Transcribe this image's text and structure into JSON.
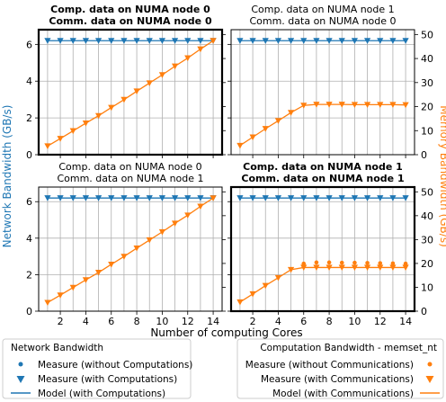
{
  "chart_data": {
    "type": "line",
    "x": [
      1,
      2,
      3,
      4,
      5,
      6,
      7,
      8,
      9,
      10,
      11,
      12,
      13,
      14
    ],
    "xlabel": "Number of computing Cores",
    "xticks": [
      "2",
      "4",
      "6",
      "8",
      "10",
      "12",
      "14"
    ],
    "xlim": [
      0.3,
      14.7
    ],
    "ylabel_left": "Network Bandwidth (GB/s)",
    "ylabel_right": "Memory Bandwidth (GB/s)",
    "ylim_left": [
      0,
      6.8
    ],
    "ylim_right": [
      0,
      52
    ],
    "yticks_left": [
      "0",
      "2",
      "4",
      "6"
    ],
    "yticks_right": [
      "0",
      "10",
      "20",
      "30",
      "40",
      "50"
    ],
    "grid": true,
    "colors": {
      "network": "#1f77b4",
      "memory": "#ff7f0e"
    },
    "panels": [
      {
        "title_line1": "Comp. data on NUMA node 0",
        "title_line2": "Comm. data on NUMA node 0",
        "title_bold": true,
        "highlight": true,
        "network_with_computations": [
          6.2,
          6.2,
          6.2,
          6.2,
          6.2,
          6.2,
          6.2,
          6.2,
          6.2,
          6.2,
          6.2,
          6.2,
          6.2,
          6.2
        ],
        "memory_with_communications": [
          3.6,
          6.7,
          9.9,
          13.1,
          16.2,
          19.6,
          22.9,
          26.4,
          29.8,
          33.2,
          36.8,
          40.2,
          43.9,
          47.4
        ],
        "memory_without_communications": [],
        "memory_model": [
          3.6,
          6.7,
          9.9,
          13.1,
          16.2,
          19.6,
          22.9,
          26.4,
          29.8,
          33.2,
          36.8,
          40.2,
          43.9,
          47.4
        ]
      },
      {
        "title_line1": "Comp. data on NUMA node 1",
        "title_line2": "Comm. data on NUMA node 0",
        "title_bold": false,
        "highlight": false,
        "network_with_computations": [
          6.2,
          6.2,
          6.2,
          6.2,
          6.2,
          6.2,
          6.2,
          6.2,
          6.2,
          6.2,
          6.2,
          6.2,
          6.2,
          6.2
        ],
        "memory_with_communications": [
          3.8,
          7.3,
          10.8,
          14.1,
          17.5,
          20.5,
          20.9,
          20.9,
          20.9,
          20.8,
          20.8,
          20.8,
          20.8,
          20.7
        ],
        "memory_without_communications": [],
        "memory_model": [
          3.8,
          7.3,
          10.8,
          14.1,
          17.5,
          20.5,
          20.9,
          20.9,
          20.9,
          20.8,
          20.8,
          20.8,
          20.8,
          20.7
        ]
      },
      {
        "title_line1": "Comp. data on NUMA node 0",
        "title_line2": "Comm. data on NUMA node 1",
        "title_bold": false,
        "highlight": false,
        "network_with_computations": [
          6.2,
          6.2,
          6.2,
          6.2,
          6.2,
          6.2,
          6.2,
          6.2,
          6.2,
          6.2,
          6.2,
          6.2,
          6.2,
          6.2
        ],
        "memory_with_communications": [
          3.6,
          6.7,
          9.9,
          13.1,
          16.2,
          19.6,
          22.9,
          26.4,
          29.8,
          33.2,
          36.8,
          40.2,
          43.9,
          47.4
        ],
        "memory_without_communications": [],
        "memory_model": [
          3.6,
          6.7,
          9.9,
          13.1,
          16.2,
          19.6,
          22.9,
          26.4,
          29.8,
          33.2,
          36.8,
          40.2,
          43.9,
          47.4
        ]
      },
      {
        "title_line1": "Comp. data on NUMA node 1",
        "title_line2": "Comm. data on NUMA node 1",
        "title_bold": true,
        "highlight": true,
        "network_with_computations": [
          6.2,
          6.2,
          6.2,
          6.2,
          6.2,
          6.2,
          6.2,
          6.2,
          6.2,
          6.2,
          6.2,
          6.2,
          6.2,
          6.2
        ],
        "memory_with_communications": [
          3.8,
          7.2,
          10.7,
          14.0,
          17.4,
          18.3,
          18.3,
          18.3,
          18.3,
          18.3,
          18.3,
          18.3,
          18.3,
          18.3
        ],
        "memory_without_communications": [
          null,
          null,
          null,
          null,
          null,
          19.9,
          20.4,
          20.4,
          20.3,
          20.3,
          20.2,
          20.1,
          20.0,
          19.9
        ],
        "memory_model": [
          3.8,
          7.2,
          10.7,
          14.0,
          17.4,
          18.3,
          18.3,
          18.3,
          18.3,
          18.3,
          18.3,
          18.3,
          18.3,
          18.3
        ]
      }
    ]
  },
  "legend_network": {
    "title": "Network Bandwidth",
    "items": [
      "Measure (without Computations)",
      "Measure (with Computations)",
      "Model (with Computations)"
    ]
  },
  "legend_memory": {
    "title": "Computation Bandwidth - memset_nt",
    "items": [
      "Measure (without Communications)",
      "Measure (with Communications)",
      "Model (with Communications)"
    ]
  }
}
